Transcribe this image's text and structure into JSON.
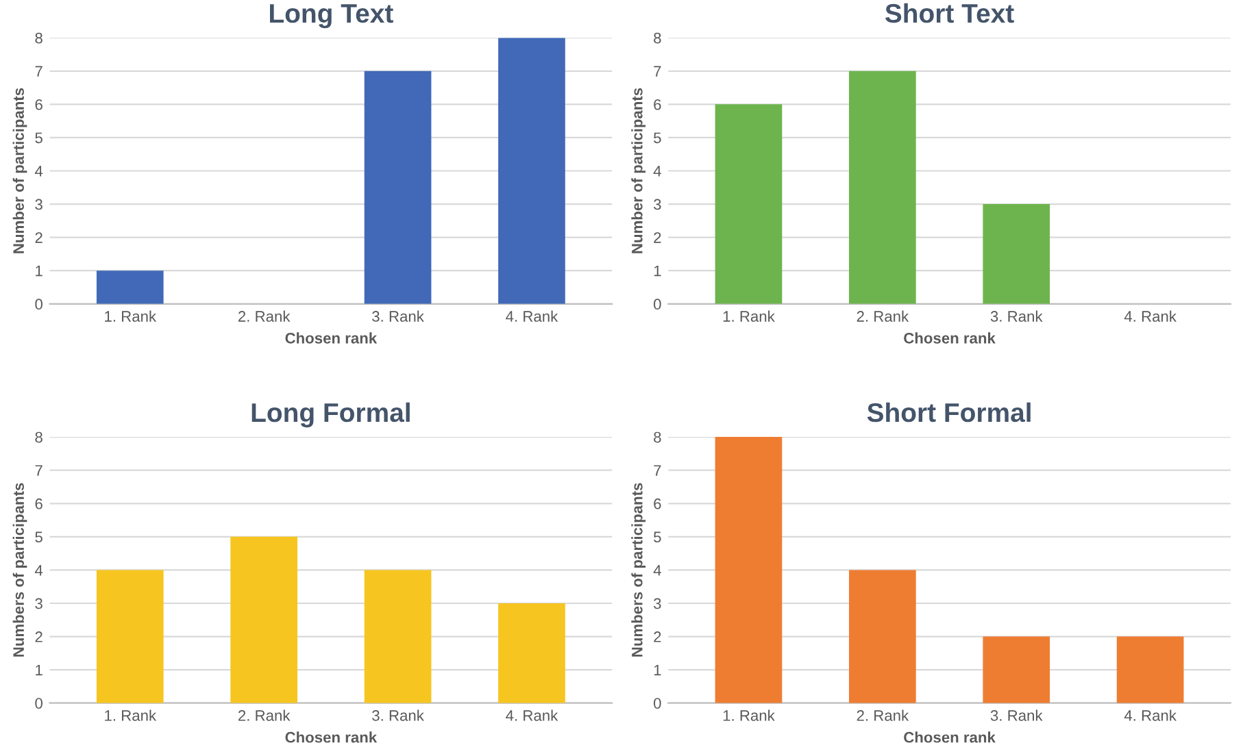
{
  "chart_data": [
    {
      "type": "bar",
      "title": "Long Text",
      "xlabel": "Chosen rank",
      "ylabel": "Number of participants",
      "categories": [
        "1. Rank",
        "2. Rank",
        "3. Rank",
        "4. Rank"
      ],
      "values": [
        1,
        0,
        7,
        8
      ],
      "color": "#4169b8",
      "ylim": [
        0,
        8
      ],
      "yticks": [
        0,
        1,
        2,
        3,
        4,
        5,
        6,
        7,
        8
      ],
      "grid": "y"
    },
    {
      "type": "bar",
      "title": "Short Text",
      "xlabel": "Chosen rank",
      "ylabel": "Number of participants",
      "categories": [
        "1. Rank",
        "2. Rank",
        "3. Rank",
        "4. Rank"
      ],
      "values": [
        6,
        7,
        3,
        0
      ],
      "color": "#6db44e",
      "ylim": [
        0,
        8
      ],
      "yticks": [
        0,
        1,
        2,
        3,
        4,
        5,
        6,
        7,
        8
      ],
      "grid": "y"
    },
    {
      "type": "bar",
      "title": "Long Formal",
      "xlabel": "Chosen rank",
      "ylabel": "Numbers of participants",
      "categories": [
        "1. Rank",
        "2. Rank",
        "3. Rank",
        "4. Rank"
      ],
      "values": [
        4,
        5,
        4,
        3
      ],
      "color": "#f7c520",
      "ylim": [
        0,
        8
      ],
      "yticks": [
        0,
        1,
        2,
        3,
        4,
        5,
        6,
        7,
        8
      ],
      "grid": "y"
    },
    {
      "type": "bar",
      "title": "Short Formal",
      "xlabel": "Chosen rank",
      "ylabel": "Numbers of participants",
      "categories": [
        "1. Rank",
        "2. Rank",
        "3. Rank",
        "4. Rank"
      ],
      "values": [
        8,
        4,
        2,
        2
      ],
      "color": "#ee7d32",
      "ylim": [
        0,
        8
      ],
      "yticks": [
        0,
        1,
        2,
        3,
        4,
        5,
        6,
        7,
        8
      ],
      "grid": "y"
    }
  ]
}
